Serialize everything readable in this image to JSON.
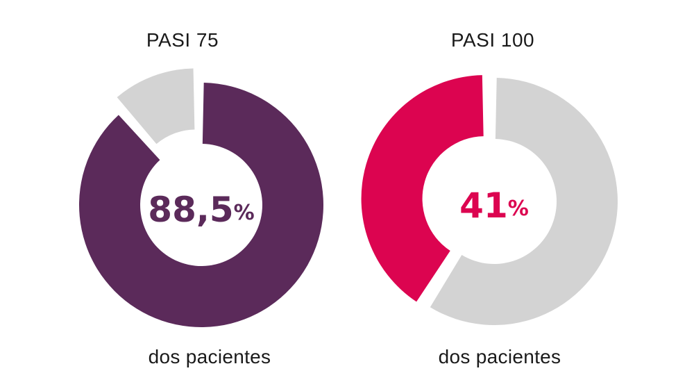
{
  "chart_data": {
    "type": "donut",
    "charts": [
      {
        "title": "PASI 75",
        "value": 88.5,
        "value_label": "88,5",
        "unit": "%",
        "caption": "dos pacientes",
        "color": "#5b2a5a",
        "remainder_color": "#d3d3d3"
      },
      {
        "title": "PASI 100",
        "value": 41,
        "value_label": "41",
        "unit": "%",
        "caption": "dos pacientes",
        "color": "#dc0450",
        "remainder_color": "#d3d3d3"
      }
    ]
  }
}
